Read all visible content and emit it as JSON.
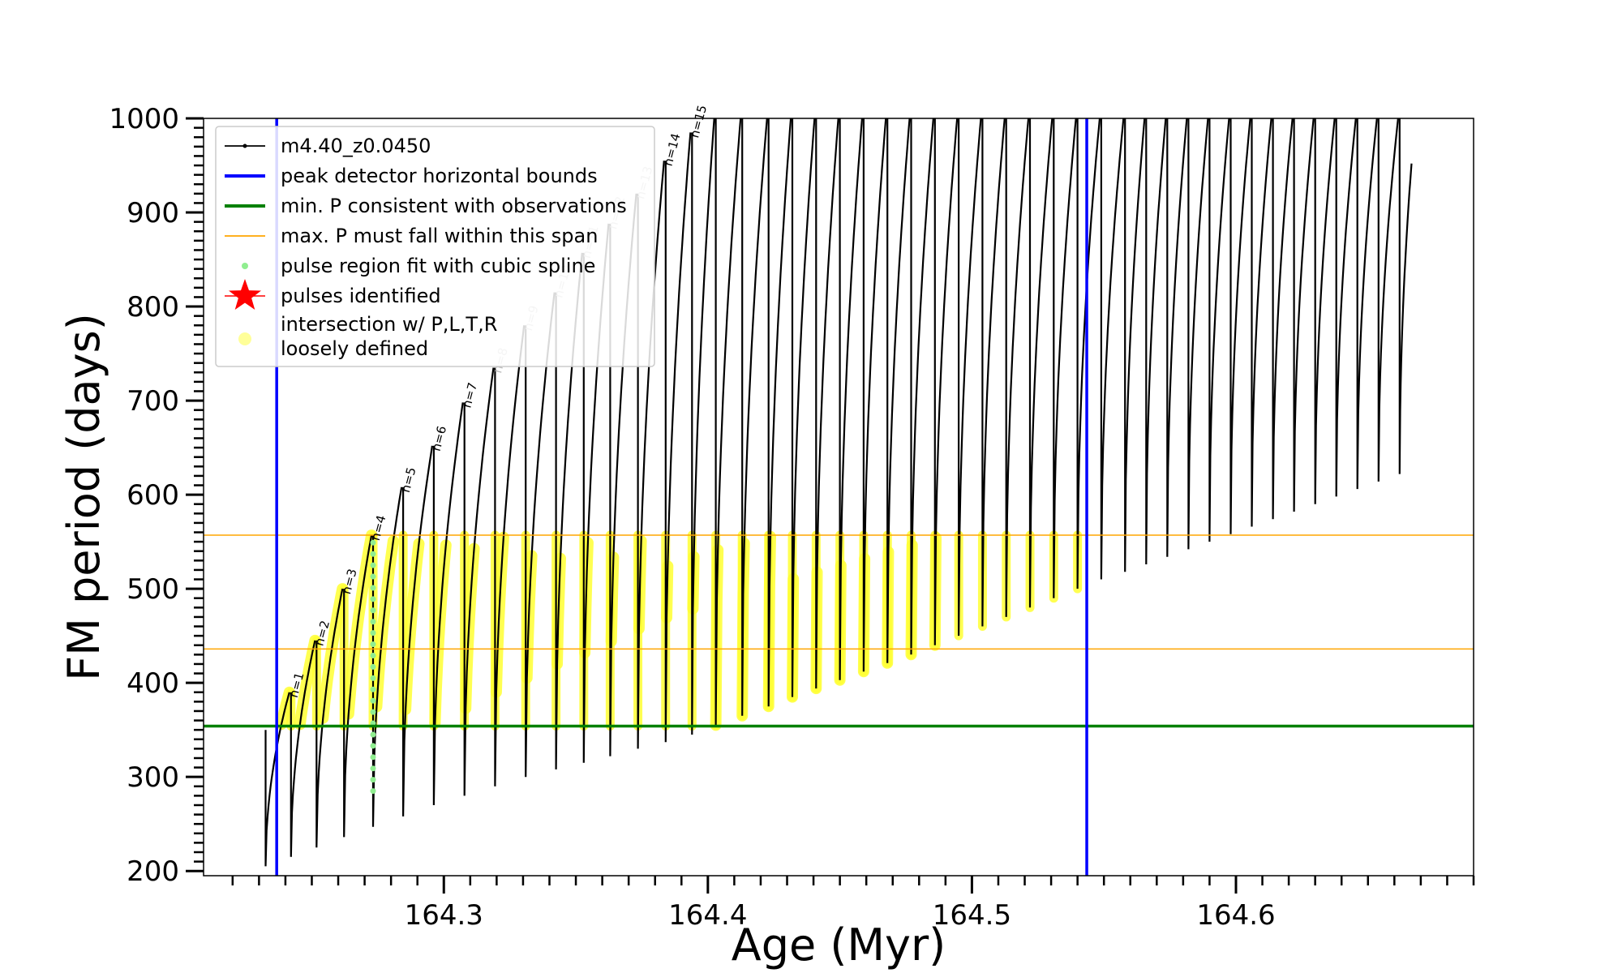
{
  "chart_data": {
    "type": "line",
    "title": "",
    "xlabel": "Age (Myr)",
    "ylabel": "FM period (days)",
    "xlim": [
      164.209,
      164.69
    ],
    "ylim": [
      195,
      1000
    ],
    "xticks": [
      164.3,
      164.4,
      164.5,
      164.6
    ],
    "xtick_labels": [
      "164.3",
      "164.4",
      "164.5",
      "164.6"
    ],
    "yticks": [
      200,
      300,
      400,
      500,
      600,
      700,
      800,
      900,
      1000
    ],
    "ytick_labels": [
      "200",
      "300",
      "400",
      "500",
      "600",
      "700",
      "800",
      "900",
      "1000"
    ],
    "grid": false,
    "legend_position": "upper-left",
    "legend": [
      {
        "label": "m4.40_z0.0450",
        "marker": "line-dot",
        "color": "#000000"
      },
      {
        "label": "peak detector horizontal bounds",
        "marker": "line",
        "color": "#0000ff"
      },
      {
        "label": "min. P consistent with observations",
        "marker": "line",
        "color": "#008000"
      },
      {
        "label": "max. P must fall within this span",
        "marker": "line-thin",
        "color": "#ffa500"
      },
      {
        "label": "pulse region fit with cubic spline",
        "marker": "dot",
        "color": "#90ee90"
      },
      {
        "label": "pulses identified",
        "marker": "star",
        "color": "#ff0000"
      },
      {
        "label": "intersection w/ P,L,T,R",
        "label2": "loosely defined",
        "marker": "circle",
        "color": "#ffff99"
      }
    ],
    "reference_lines": {
      "vertical_blue": [
        164.2367,
        164.5435
      ],
      "horizontal_green": 354,
      "horizontal_orange": [
        436,
        557
      ]
    },
    "series": [
      {
        "name": "m4.40_z0.0450",
        "pulses": [
          {
            "age": 164.2325,
            "bottom": 205,
            "peak": 350
          },
          {
            "age": 164.2421,
            "bottom": 215,
            "peak": 390
          },
          {
            "age": 164.2518,
            "bottom": 225,
            "peak": 445
          },
          {
            "age": 164.2622,
            "bottom": 236,
            "peak": 500
          },
          {
            "age": 164.2732,
            "bottom": 247,
            "peak": 557
          },
          {
            "age": 164.2846,
            "bottom": 258,
            "peak": 608
          },
          {
            "age": 164.2962,
            "bottom": 270,
            "peak": 652
          },
          {
            "age": 164.3078,
            "bottom": 280,
            "peak": 698
          },
          {
            "age": 164.3194,
            "bottom": 290,
            "peak": 735
          },
          {
            "age": 164.331,
            "bottom": 300,
            "peak": 780
          },
          {
            "age": 164.3425,
            "bottom": 308,
            "peak": 815
          },
          {
            "age": 164.353,
            "bottom": 315,
            "peak": 857
          },
          {
            "age": 164.363,
            "bottom": 322,
            "peak": 888
          },
          {
            "age": 164.3735,
            "bottom": 330,
            "peak": 920
          },
          {
            "age": 164.384,
            "bottom": 337,
            "peak": 955
          },
          {
            "age": 164.394,
            "bottom": 345,
            "peak": 985
          },
          {
            "age": 164.403,
            "bottom": 355,
            "peak": 1000
          },
          {
            "age": 164.413,
            "bottom": 365,
            "peak": 1000
          },
          {
            "age": 164.423,
            "bottom": 375,
            "peak": 1000
          },
          {
            "age": 164.432,
            "bottom": 385,
            "peak": 1000
          },
          {
            "age": 164.441,
            "bottom": 394,
            "peak": 1000
          },
          {
            "age": 164.45,
            "bottom": 403,
            "peak": 1000
          },
          {
            "age": 164.459,
            "bottom": 412,
            "peak": 1000
          },
          {
            "age": 164.468,
            "bottom": 421,
            "peak": 1000
          },
          {
            "age": 164.477,
            "bottom": 430,
            "peak": 1000
          },
          {
            "age": 164.486,
            "bottom": 440,
            "peak": 1000
          },
          {
            "age": 164.495,
            "bottom": 450,
            "peak": 1000
          },
          {
            "age": 164.504,
            "bottom": 460,
            "peak": 1000
          },
          {
            "age": 164.513,
            "bottom": 470,
            "peak": 1000
          },
          {
            "age": 164.522,
            "bottom": 480,
            "peak": 1000
          },
          {
            "age": 164.531,
            "bottom": 490,
            "peak": 1000
          },
          {
            "age": 164.54,
            "bottom": 500,
            "peak": 1000
          },
          {
            "age": 164.549,
            "bottom": 510,
            "peak": 1000
          },
          {
            "age": 164.558,
            "bottom": 518,
            "peak": 1000
          },
          {
            "age": 164.566,
            "bottom": 526,
            "peak": 1000
          },
          {
            "age": 164.574,
            "bottom": 534,
            "peak": 1000
          },
          {
            "age": 164.582,
            "bottom": 542,
            "peak": 1000
          },
          {
            "age": 164.59,
            "bottom": 550,
            "peak": 1000
          },
          {
            "age": 164.598,
            "bottom": 558,
            "peak": 1000
          },
          {
            "age": 164.606,
            "bottom": 566,
            "peak": 1000
          },
          {
            "age": 164.614,
            "bottom": 574,
            "peak": 1000
          },
          {
            "age": 164.622,
            "bottom": 582,
            "peak": 1000
          },
          {
            "age": 164.63,
            "bottom": 590,
            "peak": 1000
          },
          {
            "age": 164.638,
            "bottom": 598,
            "peak": 1000
          },
          {
            "age": 164.646,
            "bottom": 606,
            "peak": 1000
          },
          {
            "age": 164.654,
            "bottom": 614,
            "peak": 1000
          },
          {
            "age": 164.662,
            "bottom": 622,
            "peak": 1000
          }
        ]
      }
    ],
    "pulse_labels": [
      {
        "text": "n=1",
        "age": 164.242,
        "period": 380,
        "shade": "dark"
      },
      {
        "text": "n=2",
        "age": 164.2517,
        "period": 435,
        "shade": "dark"
      },
      {
        "text": "n=3",
        "age": 164.262,
        "period": 490,
        "shade": "dark"
      },
      {
        "text": "n=4",
        "age": 164.273,
        "period": 547,
        "shade": "dark"
      },
      {
        "text": "n=5",
        "age": 164.2844,
        "period": 598,
        "shade": "dark"
      },
      {
        "text": "n=6",
        "age": 164.296,
        "period": 642,
        "shade": "dark"
      },
      {
        "text": "n=7",
        "age": 164.3076,
        "period": 688,
        "shade": "dark"
      },
      {
        "text": "n=8",
        "age": 164.3192,
        "period": 725,
        "shade": "light"
      },
      {
        "text": "n=9",
        "age": 164.3308,
        "period": 770,
        "shade": "light"
      },
      {
        "text": "n=10",
        "age": 164.3423,
        "period": 805,
        "shade": "light"
      },
      {
        "text": "n=11",
        "age": 164.3528,
        "period": 847,
        "shade": "light"
      },
      {
        "text": "n=12",
        "age": 164.3628,
        "period": 878,
        "shade": "light"
      },
      {
        "text": "n=13",
        "age": 164.3733,
        "period": 910,
        "shade": "light"
      },
      {
        "text": "n=14",
        "age": 164.3838,
        "period": 945,
        "shade": "dark"
      },
      {
        "text": "n=15",
        "age": 164.3938,
        "period": 975,
        "shade": "dark"
      }
    ]
  }
}
